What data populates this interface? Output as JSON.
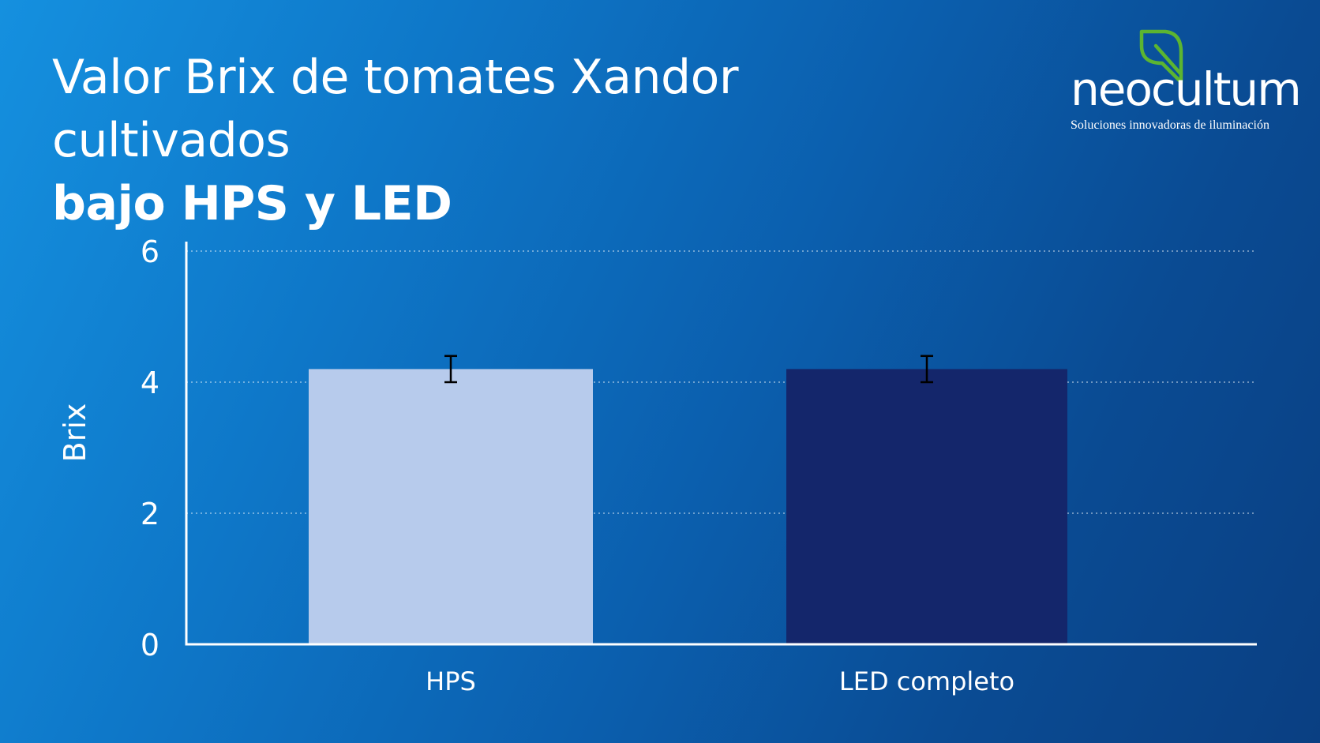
{
  "slide": {
    "title_line1": "Valor Brix de tomates Xandor cultivados",
    "title_line2": "bajo HPS y LED"
  },
  "logo": {
    "wordmark": "neocultum",
    "tagline": "Soluciones innovadoras de iluminación",
    "leaf_color": "#5cb531"
  },
  "colors": {
    "background_start": "#1590df",
    "background_end": "#0a3f82",
    "hps_bar": "#b7cbec",
    "led_bar": "#14266b",
    "axis": "#ffffff",
    "error_bar": "#000000"
  },
  "chart_data": {
    "type": "bar",
    "title": "",
    "xlabel": "",
    "ylabel": "Brix",
    "ylim": [
      0,
      6
    ],
    "yticks": [
      0,
      2,
      4,
      6
    ],
    "grid": "horizontal-dotted",
    "categories": [
      "HPS",
      "LED completo"
    ],
    "values": [
      4.2,
      4.2
    ],
    "error": [
      0.2,
      0.2
    ],
    "bar_colors": [
      "#b7cbec",
      "#14266b"
    ]
  }
}
